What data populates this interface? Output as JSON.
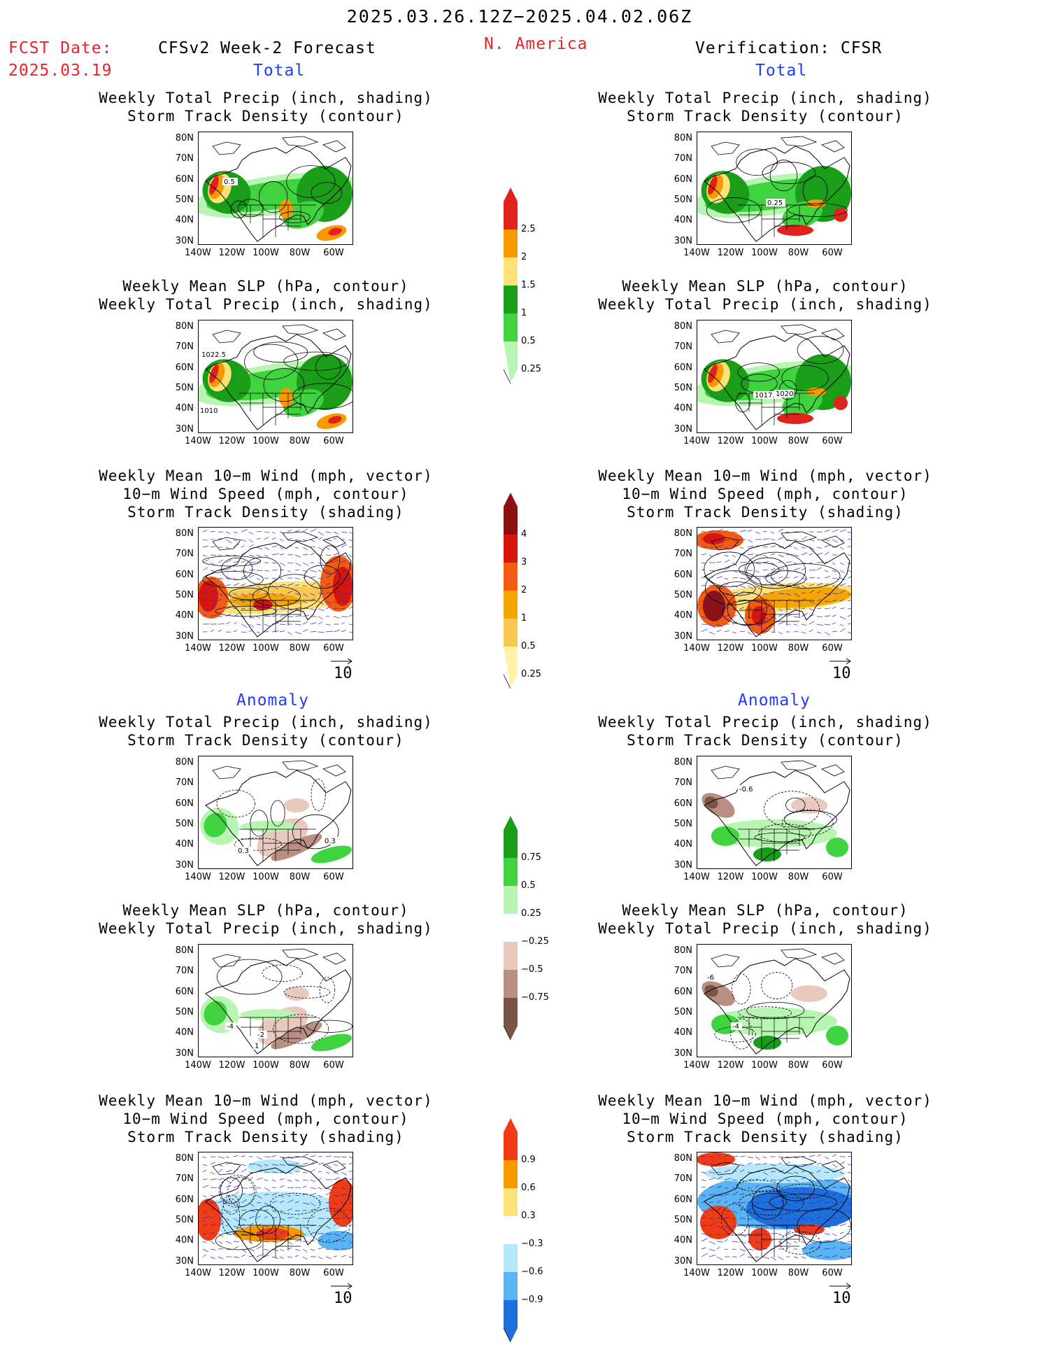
{
  "header": {
    "period": "2025.03.26.12Z−2025.04.02.06Z",
    "fcst_date_label": "FCST Date:",
    "fcst_date_value": "2025.03.19",
    "model": "CFSv2 Week-2 Forecast",
    "region": "N. America",
    "verification": "Verification: CFSR"
  },
  "sections": {
    "total_left": "Total",
    "total_right": "Total",
    "anomaly_left": "Anomaly",
    "anomaly_right": "Anomaly"
  },
  "panel_titles": {
    "precip_storm": [
      "Weekly Total Precip (inch, shading)",
      "Storm Track Density (contour)"
    ],
    "slp_precip": [
      "Weekly Mean SLP (hPa, contour)",
      "Weekly Total Precip (inch, shading)"
    ],
    "wind_storm": [
      "Weekly Mean 10−m Wind (mph, vector)",
      "10−m Wind Speed (mph, contour)",
      "Storm Track Density (shading)"
    ]
  },
  "axes": {
    "lat_labels": [
      "80N",
      "70N",
      "60N",
      "50N",
      "40N",
      "30N"
    ],
    "lon_labels": [
      "140W",
      "120W",
      "100W",
      "80W",
      "60W"
    ]
  },
  "vector_reference": "10",
  "contour_labels": {
    "fc_total_precip": [
      "0.5"
    ],
    "ver_total_precip": [
      "0.25"
    ],
    "fc_total_slp": [
      "1022.5",
      "1010"
    ],
    "ver_total_slp": [
      "1017.5",
      "1020"
    ],
    "fc_anom_precip": [
      "0.3",
      "0.3"
    ],
    "ver_anom_precip": [
      "-0.6"
    ],
    "fc_anom_slp": [
      "-4",
      "-2",
      "1"
    ],
    "ver_anom_slp": [
      "-6",
      "-4"
    ]
  },
  "colorbars": {
    "total_precip": {
      "labels": [
        "2.5",
        "2",
        "1.5",
        "1",
        "0.5",
        "0.25"
      ],
      "colors": [
        "#e0231c",
        "#f79a00",
        "#fde27a",
        "#1a9e1a",
        "#3fd43f",
        "#b8f5b2"
      ]
    },
    "total_storm": {
      "labels": [
        "4",
        "3",
        "2",
        "1",
        "0.5",
        "0.25"
      ],
      "colors": [
        "#8c1110",
        "#d8150d",
        "#f35a12",
        "#f6a600",
        "#fbc84f",
        "#fff2a8"
      ]
    },
    "anom_precip": {
      "labels": [
        "0.75",
        "0.5",
        "0.25",
        "−0.25",
        "−0.5",
        "−0.75"
      ],
      "colors": [
        "#1a9e1a",
        "#3fd43f",
        "#b8f5b2",
        "#ffffff",
        "#e7c9bd",
        "#b98f84",
        "#7a5448"
      ]
    },
    "anom_storm": {
      "labels": [
        "0.9",
        "0.6",
        "0.3",
        "−0.3",
        "−0.6",
        "−0.9"
      ],
      "colors": [
        "#f03c14",
        "#f79a00",
        "#fde27a",
        "#ffffff",
        "#b5e8f8",
        "#5ab4f0",
        "#1e6fd9"
      ]
    }
  }
}
